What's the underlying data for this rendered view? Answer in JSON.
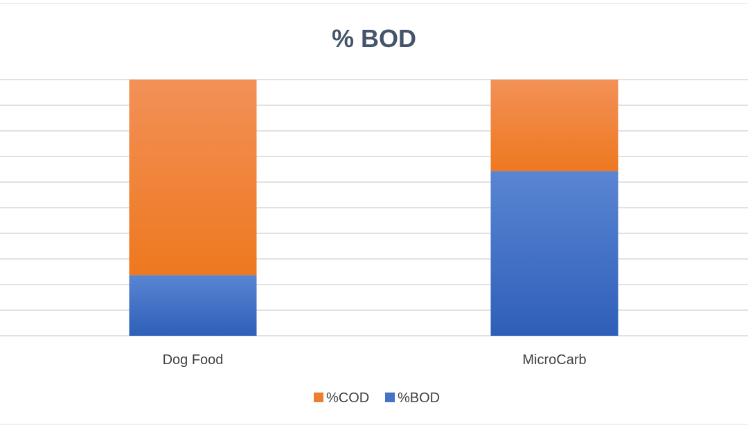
{
  "chart_data": {
    "type": "bar",
    "stacked": true,
    "title": "% BOD",
    "xlabel": "",
    "ylabel": "",
    "categories": [
      "Dog Food",
      "MicroCarb"
    ],
    "series": [
      {
        "name": "%BOD",
        "values": [
          23.7,
          64.3
        ]
      },
      {
        "name": "%COD",
        "values": [
          76.3,
          35.7
        ]
      }
    ],
    "ylim": [
      0,
      100
    ],
    "gridlines": true,
    "legend": "bottom",
    "colors": {
      "%BOD": "#4472C4",
      "%COD": "#ED7D31"
    }
  }
}
